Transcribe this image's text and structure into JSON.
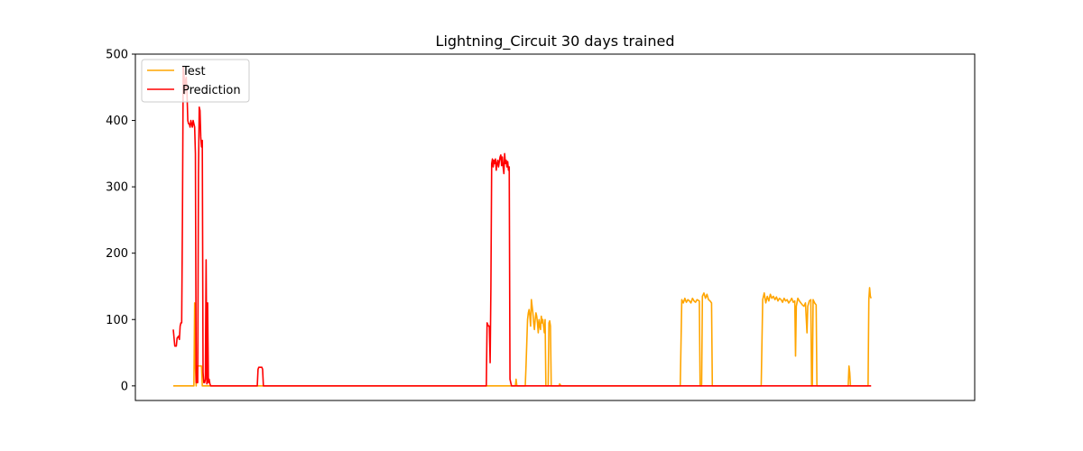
{
  "chart_data": {
    "type": "line",
    "title": "Lightning_Circuit 30 days trained",
    "xlabel": "",
    "ylabel": "",
    "x_range": [
      0,
      1000
    ],
    "ylim": [
      -22,
      500
    ],
    "y_ticks": [
      0,
      100,
      200,
      300,
      400,
      500
    ],
    "x_ticks_shown": false,
    "grid": false,
    "legend_position": "top-left",
    "series": [
      {
        "name": "Test",
        "color": "#ffa500",
        "points": [
          [
            0,
            0
          ],
          [
            27,
            0
          ],
          [
            28,
            125
          ],
          [
            29,
            30
          ],
          [
            30,
            0
          ],
          [
            31,
            30
          ],
          [
            37,
            30
          ],
          [
            38,
            0
          ],
          [
            448,
            0
          ],
          [
            449,
            10
          ],
          [
            450,
            0
          ],
          [
            461,
            0
          ],
          [
            462,
            30
          ],
          [
            464,
            100
          ],
          [
            465,
            110
          ],
          [
            466,
            115
          ],
          [
            467,
            105
          ],
          [
            468,
            90
          ],
          [
            469,
            130
          ],
          [
            470,
            120
          ],
          [
            471,
            110
          ],
          [
            472,
            95
          ],
          [
            473,
            85
          ],
          [
            474,
            100
          ],
          [
            475,
            110
          ],
          [
            476,
            105
          ],
          [
            477,
            95
          ],
          [
            478,
            80
          ],
          [
            479,
            100
          ],
          [
            480,
            90
          ],
          [
            481,
            85
          ],
          [
            482,
            105
          ],
          [
            483,
            95
          ],
          [
            484,
            100
          ],
          [
            485,
            90
          ],
          [
            486,
            80
          ],
          [
            487,
            100
          ],
          [
            488,
            0
          ],
          [
            491,
            0
          ],
          [
            492,
            95
          ],
          [
            493,
            98
          ],
          [
            494,
            90
          ],
          [
            495,
            0
          ],
          [
            505,
            0
          ],
          [
            506,
            3
          ],
          [
            508,
            0
          ],
          [
            664,
            0
          ],
          [
            666,
            130
          ],
          [
            668,
            125
          ],
          [
            670,
            132
          ],
          [
            672,
            126
          ],
          [
            674,
            130
          ],
          [
            676,
            128
          ],
          [
            678,
            125
          ],
          [
            680,
            132
          ],
          [
            682,
            128
          ],
          [
            684,
            126
          ],
          [
            686,
            130
          ],
          [
            689,
            128
          ],
          [
            690,
            0
          ],
          [
            692,
            0
          ],
          [
            693,
            135
          ],
          [
            695,
            140
          ],
          [
            697,
            132
          ],
          [
            699,
            138
          ],
          [
            701,
            130
          ],
          [
            703,
            128
          ],
          [
            705,
            125
          ],
          [
            706,
            0
          ],
          [
            770,
            0
          ],
          [
            772,
            130
          ],
          [
            774,
            140
          ],
          [
            776,
            125
          ],
          [
            778,
            135
          ],
          [
            780,
            128
          ],
          [
            782,
            138
          ],
          [
            784,
            132
          ],
          [
            786,
            135
          ],
          [
            788,
            130
          ],
          [
            790,
            134
          ],
          [
            792,
            128
          ],
          [
            794,
            132
          ],
          [
            796,
            130
          ],
          [
            798,
            126
          ],
          [
            800,
            132
          ],
          [
            802,
            128
          ],
          [
            804,
            130
          ],
          [
            806,
            125
          ],
          [
            808,
            128
          ],
          [
            810,
            132
          ],
          [
            812,
            126
          ],
          [
            814,
            128
          ],
          [
            815,
            45
          ],
          [
            816,
            120
          ],
          [
            818,
            132
          ],
          [
            820,
            128
          ],
          [
            822,
            125
          ],
          [
            824,
            122
          ],
          [
            826,
            120
          ],
          [
            828,
            125
          ],
          [
            830,
            80
          ],
          [
            831,
            120
          ],
          [
            833,
            128
          ],
          [
            835,
            130
          ],
          [
            836,
            0
          ],
          [
            837,
            0
          ],
          [
            838,
            130
          ],
          [
            840,
            125
          ],
          [
            842,
            122
          ],
          [
            843,
            0
          ],
          [
            884,
            0
          ],
          [
            885,
            30
          ],
          [
            886,
            20
          ],
          [
            887,
            0
          ],
          [
            910,
            0
          ],
          [
            911,
            130
          ],
          [
            912,
            148
          ],
          [
            913,
            135
          ],
          [
            914,
            132
          ]
        ]
      },
      {
        "name": "Prediction",
        "color": "#ff0000",
        "points": [
          [
            0,
            85
          ],
          [
            2,
            60
          ],
          [
            4,
            60
          ],
          [
            5,
            72
          ],
          [
            7,
            75
          ],
          [
            8,
            70
          ],
          [
            9,
            90
          ],
          [
            10,
            95
          ],
          [
            11,
            95
          ],
          [
            12,
            250
          ],
          [
            13,
            480
          ],
          [
            14,
            470
          ],
          [
            15,
            440
          ],
          [
            16,
            460
          ],
          [
            17,
            465
          ],
          [
            18,
            440
          ],
          [
            19,
            400
          ],
          [
            20,
            395
          ],
          [
            21,
            395
          ],
          [
            22,
            390
          ],
          [
            23,
            400
          ],
          [
            24,
            395
          ],
          [
            25,
            390
          ],
          [
            26,
            400
          ],
          [
            27,
            395
          ],
          [
            28,
            390
          ],
          [
            29,
            350
          ],
          [
            30,
            5
          ],
          [
            31,
            5
          ],
          [
            32,
            5
          ],
          [
            33,
            320
          ],
          [
            34,
            420
          ],
          [
            35,
            415
          ],
          [
            36,
            375
          ],
          [
            37,
            360
          ],
          [
            38,
            370
          ],
          [
            39,
            20
          ],
          [
            40,
            5
          ],
          [
            41,
            5
          ],
          [
            42,
            10
          ],
          [
            43,
            190
          ],
          [
            44,
            3
          ],
          [
            45,
            125
          ],
          [
            46,
            5
          ],
          [
            47,
            10
          ],
          [
            48,
            3
          ],
          [
            49,
            0
          ],
          [
            110,
            0
          ],
          [
            111,
            25
          ],
          [
            112,
            28
          ],
          [
            113,
            28
          ],
          [
            114,
            28
          ],
          [
            115,
            28
          ],
          [
            116,
            28
          ],
          [
            117,
            25
          ],
          [
            118,
            0
          ],
          [
            410,
            0
          ],
          [
            411,
            95
          ],
          [
            412,
            92
          ],
          [
            413,
            90
          ],
          [
            414,
            90
          ],
          [
            415,
            35
          ],
          [
            416,
            150
          ],
          [
            417,
            335
          ],
          [
            418,
            342
          ],
          [
            419,
            330
          ],
          [
            420,
            340
          ],
          [
            421,
            335
          ],
          [
            422,
            342
          ],
          [
            423,
            325
          ],
          [
            424,
            335
          ],
          [
            425,
            340
          ],
          [
            426,
            330
          ],
          [
            427,
            338
          ],
          [
            428,
            345
          ],
          [
            429,
            348
          ],
          [
            430,
            332
          ],
          [
            431,
            345
          ],
          [
            432,
            330
          ],
          [
            433,
            320
          ],
          [
            434,
            350
          ],
          [
            435,
            335
          ],
          [
            436,
            340
          ],
          [
            437,
            330
          ],
          [
            438,
            338
          ],
          [
            439,
            325
          ],
          [
            440,
            330
          ],
          [
            441,
            10
          ],
          [
            442,
            5
          ],
          [
            443,
            0
          ],
          [
            460,
            0
          ],
          [
            914,
            0
          ]
        ]
      }
    ]
  }
}
